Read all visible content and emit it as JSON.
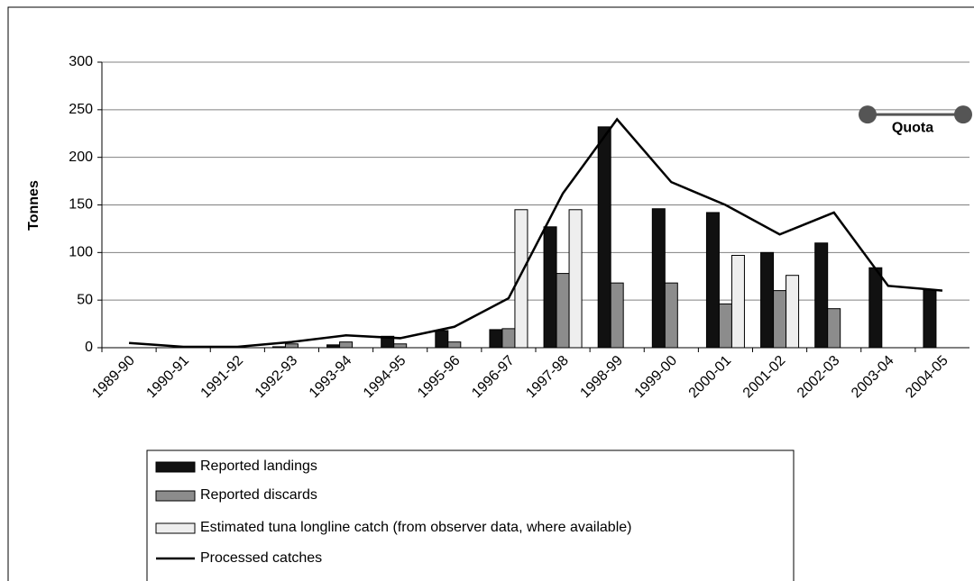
{
  "chart_data": {
    "type": "bar",
    "ylabel": "Tonnes",
    "categories": [
      "1989-90",
      "1990-91",
      "1991-92",
      "1992-93",
      "1993-94",
      "1994-95",
      "1995-96",
      "1996-97",
      "1997-98",
      "1998-99",
      "1999-00",
      "2000-01",
      "2001-02",
      "2002-03",
      "2003-04",
      "2004-05"
    ],
    "series": [
      {
        "name": "Reported landings",
        "type": "bar",
        "color": "#111111",
        "values": [
          null,
          null,
          null,
          1,
          3,
          12,
          18,
          19,
          127,
          232,
          146,
          142,
          100,
          110,
          84,
          61
        ]
      },
      {
        "name": "Reported discards",
        "type": "bar",
        "color": "#8c8c8c",
        "values": [
          null,
          null,
          null,
          4,
          6,
          4,
          6,
          20,
          78,
          68,
          68,
          46,
          60,
          41,
          null,
          null
        ]
      },
      {
        "name": "Estimated tuna longline catch (from observer data, where available)",
        "type": "bar",
        "color": "#eeeeee",
        "values": [
          null,
          null,
          null,
          null,
          null,
          null,
          null,
          145,
          145,
          null,
          null,
          97,
          76,
          null,
          null,
          null
        ]
      },
      {
        "name": "Processed catches",
        "type": "line",
        "color": "#000000",
        "values": [
          5,
          1,
          1,
          6,
          13,
          10,
          22,
          52,
          162,
          240,
          174,
          150,
          119,
          142,
          65,
          60
        ]
      }
    ],
    "annotation": {
      "text": "Quota",
      "value": 245,
      "color": "#555555"
    },
    "ylim": [
      0,
      300
    ],
    "yticks": [
      0,
      50,
      100,
      150,
      200,
      250,
      300
    ],
    "grid": true
  }
}
